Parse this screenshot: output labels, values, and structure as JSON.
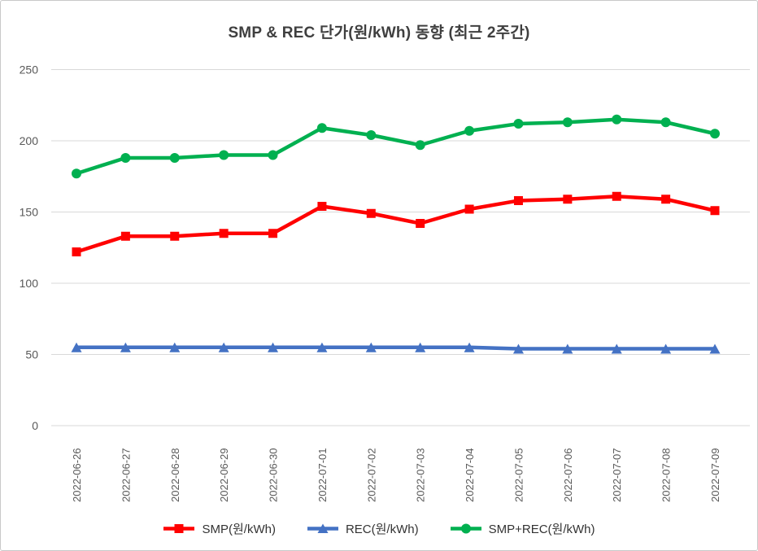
{
  "chart_data": {
    "type": "line",
    "title": "SMP & REC 단가(원/kWh) 동향 (최근 2주간)",
    "x": [
      "2022-06-26",
      "2022-06-27",
      "2022-06-28",
      "2022-06-29",
      "2022-06-30",
      "2022-07-01",
      "2022-07-02",
      "2022-07-03",
      "2022-07-04",
      "2022-07-05",
      "2022-07-06",
      "2022-07-07",
      "2022-07-08",
      "2022-07-09"
    ],
    "series": [
      {
        "name": "SMP(원/kWh)",
        "color": "#FF0000",
        "marker": "square",
        "values": [
          122,
          133,
          133,
          135,
          135,
          154,
          149,
          142,
          152,
          158,
          159,
          161,
          159,
          151
        ]
      },
      {
        "name": "REC(원/kWh)",
        "color": "#4472C4",
        "marker": "triangle",
        "values": [
          55,
          55,
          55,
          55,
          55,
          55,
          55,
          55,
          55,
          54,
          54,
          54,
          54,
          54
        ]
      },
      {
        "name": "SMP+REC(원/kWh)",
        "color": "#00B050",
        "marker": "circle",
        "values": [
          177,
          188,
          188,
          190,
          190,
          209,
          204,
          197,
          207,
          212,
          213,
          215,
          213,
          205
        ]
      }
    ],
    "ylabel": "",
    "xlabel": "",
    "ylim": [
      0,
      250
    ],
    "yticks": [
      "0",
      "50",
      "100",
      "150",
      "200",
      "250"
    ],
    "grid": "horizontal-only",
    "legend_position": "bottom",
    "colors": {
      "gridline": "#D9D9D9",
      "tick_label": "#595959",
      "title_text": "#3F3F3F",
      "legend_text": "#333333",
      "frame_border": "#C9C9C9"
    }
  }
}
